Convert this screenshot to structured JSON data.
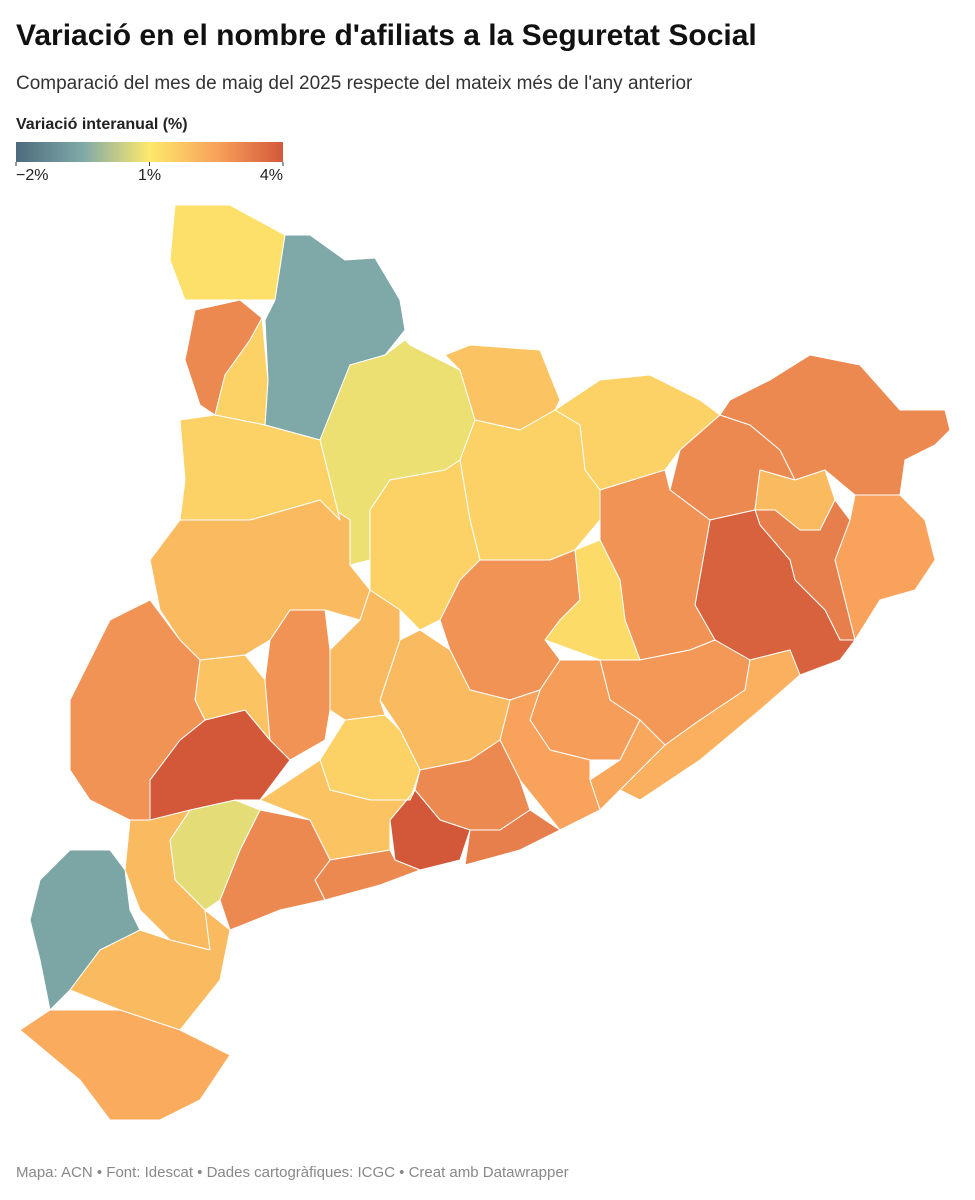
{
  "title": "Variació en el nombre d'afiliats a la Seguretat Social",
  "subtitle": "Comparació del mes de maig del 2025 respecte del mateix més de l'any anterior",
  "legend": {
    "title": "Variació interanual (%)",
    "lim": [
      -2,
      4
    ],
    "ticks": [
      {
        "value": -2,
        "label": "−2%"
      },
      {
        "value": 1,
        "label": "1%"
      },
      {
        "value": 4,
        "label": "4%"
      }
    ]
  },
  "regions": {
    "values": [
      1.2,
      3.0,
      -0.5,
      1.5,
      0.8,
      1.8,
      1.5,
      3.0,
      3.0,
      2.0,
      2.5,
      3.2,
      3.8,
      2.8,
      1.5,
      1.5,
      2.8,
      1.3,
      2.7,
      2.2,
      2.6,
      2.4,
      2.5,
      2.0,
      3.0,
      4.2,
      3.2,
      1.5,
      1.8,
      3.0,
      3.0,
      0.7,
      2.0,
      -0.6,
      2.0,
      2.3,
      4.0,
      1.8,
      2.8,
      2.0,
      2.8,
      1.5,
      2.0
    ]
  },
  "footer": "Mapa: ACN • Font: Idescat • Dades cartogràfiques: ICGC  • Creat amb Datawrapper"
}
